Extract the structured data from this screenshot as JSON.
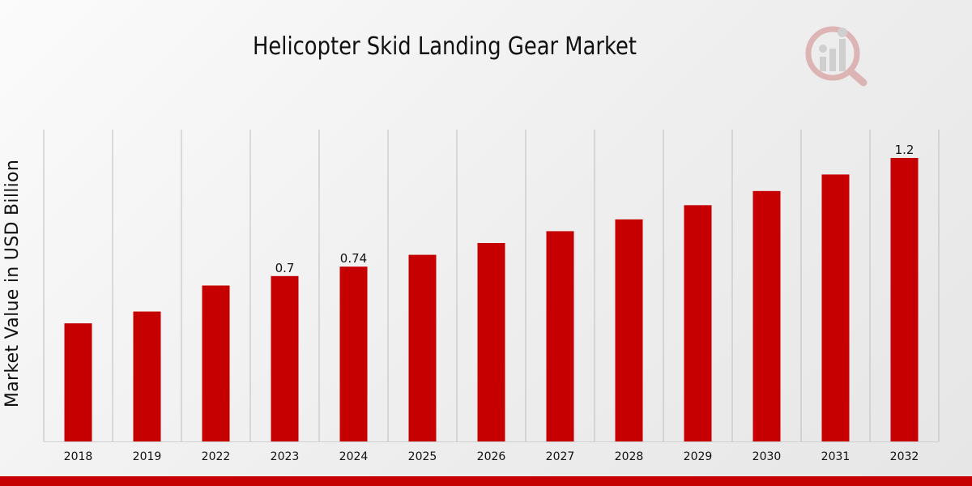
{
  "colors": {
    "bar": "#c60000",
    "bottom_bar": "#c60000",
    "grid": "#bdbdbd"
  },
  "logo": {
    "icon": "magnifier-bar-chart-icon"
  },
  "chart_data": {
    "type": "bar",
    "title": "Helicopter Skid Landing Gear Market",
    "xlabel": "",
    "ylabel": "Market Value in USD Billion",
    "categories": [
      "2018",
      "2019",
      "2022",
      "2023",
      "2024",
      "2025",
      "2026",
      "2027",
      "2028",
      "2029",
      "2030",
      "2031",
      "2032"
    ],
    "values": [
      0.5,
      0.55,
      0.66,
      0.7,
      0.74,
      0.79,
      0.84,
      0.89,
      0.94,
      1.0,
      1.06,
      1.13,
      1.2
    ],
    "data_labels": [
      "",
      "",
      "",
      "0.7",
      "0.74",
      "",
      "",
      "",
      "",
      "",
      "",
      "",
      "1.2"
    ],
    "ylim": [
      0,
      1.32
    ],
    "grid": "vertical",
    "legend": "none"
  }
}
